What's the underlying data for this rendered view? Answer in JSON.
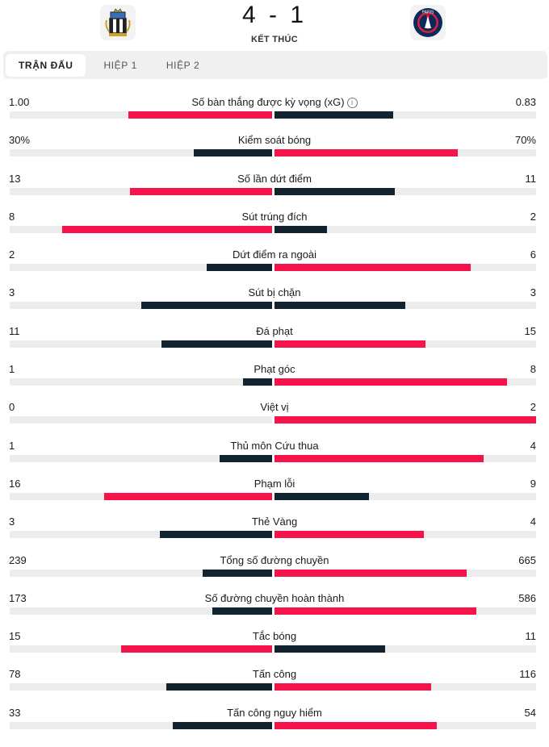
{
  "match": {
    "score": "4 - 1",
    "status": "KẾT THÚC",
    "home_crest": "newcastle-crest",
    "away_crest": "psg-crest"
  },
  "tabs": [
    "TRẬN ĐẤU",
    "HIỆP 1",
    "HIỆP 2"
  ],
  "colors": {
    "leader": "#f5134a",
    "trailer": "#10232f",
    "track": "#ececec"
  },
  "stats": [
    {
      "label": "Số bàn thắng được kỳ vọng (xG)",
      "home": "1.00",
      "away": "0.83",
      "hv": 1.0,
      "av": 0.83,
      "info": true
    },
    {
      "label": "Kiểm soát bóng",
      "home": "30%",
      "away": "70%",
      "hv": 30,
      "av": 70
    },
    {
      "label": "Số lần dứt điểm",
      "home": "13",
      "away": "11",
      "hv": 13,
      "av": 11
    },
    {
      "label": "Sút trúng đích",
      "home": "8",
      "away": "2",
      "hv": 8,
      "av": 2
    },
    {
      "label": "Dứt điểm ra ngoài",
      "home": "2",
      "away": "6",
      "hv": 2,
      "av": 6
    },
    {
      "label": "Sút bị chặn",
      "home": "3",
      "away": "3",
      "hv": 3,
      "av": 3
    },
    {
      "label": "Đá phạt",
      "home": "11",
      "away": "15",
      "hv": 11,
      "av": 15
    },
    {
      "label": "Phạt góc",
      "home": "1",
      "away": "8",
      "hv": 1,
      "av": 8
    },
    {
      "label": "Việt vị",
      "home": "0",
      "away": "2",
      "hv": 0,
      "av": 2
    },
    {
      "label": "Thủ môn Cứu thua",
      "home": "1",
      "away": "4",
      "hv": 1,
      "av": 4
    },
    {
      "label": "Phạm lỗi",
      "home": "16",
      "away": "9",
      "hv": 16,
      "av": 9
    },
    {
      "label": "Thẻ Vàng",
      "home": "3",
      "away": "4",
      "hv": 3,
      "av": 4
    },
    {
      "label": "Tổng số đường chuyền",
      "home": "239",
      "away": "665",
      "hv": 239,
      "av": 665
    },
    {
      "label": "Số đường chuyền hoàn thành",
      "home": "173",
      "away": "586",
      "hv": 173,
      "av": 586
    },
    {
      "label": "Tắc bóng",
      "home": "15",
      "away": "11",
      "hv": 15,
      "av": 11
    },
    {
      "label": "Tấn công",
      "home": "78",
      "away": "116",
      "hv": 78,
      "av": 116
    },
    {
      "label": "Tấn công nguy hiểm",
      "home": "33",
      "away": "54",
      "hv": 33,
      "av": 54
    }
  ]
}
